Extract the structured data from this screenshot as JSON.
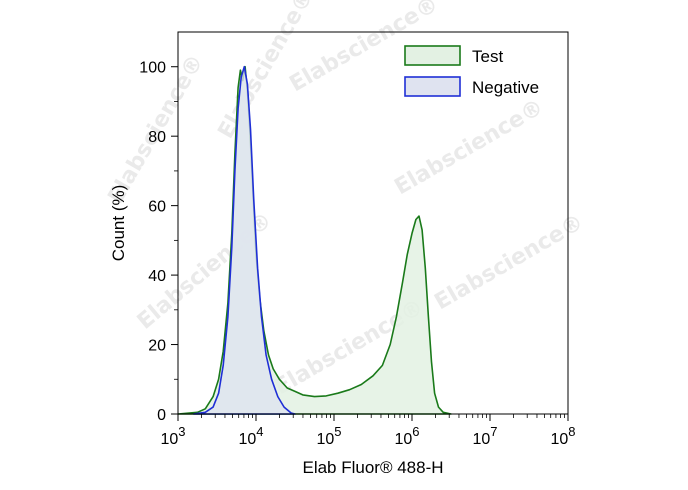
{
  "chart_data": {
    "type": "area",
    "title": "",
    "xlabel": "Elab Fluor® 488-H",
    "ylabel": "Count  (%)",
    "xscale": "log10",
    "xlim_log10": [
      3,
      8
    ],
    "ylim": [
      0,
      110
    ],
    "grid": false,
    "legend_position": "top-right",
    "x_ticks": [
      {
        "base": "10",
        "exp": "3",
        "log10": 3
      },
      {
        "base": "10",
        "exp": "4",
        "log10": 4
      },
      {
        "base": "10",
        "exp": "5",
        "log10": 5
      },
      {
        "base": "10",
        "exp": "6",
        "log10": 6
      },
      {
        "base": "10",
        "exp": "7",
        "log10": 7
      },
      {
        "base": "10",
        "exp": "8",
        "log10": 8
      }
    ],
    "y_ticks": [
      "0",
      "20",
      "40",
      "60",
      "80",
      "100"
    ],
    "y_tick_values": [
      0,
      20,
      40,
      60,
      80,
      100
    ],
    "series": [
      {
        "name": "Test",
        "stroke": "#1a7a1a",
        "fill": "#e3f1e3",
        "points_log10x_y": [
          [
            3.0,
            0
          ],
          [
            3.25,
            0.5
          ],
          [
            3.35,
            1.5
          ],
          [
            3.45,
            5
          ],
          [
            3.52,
            10
          ],
          [
            3.58,
            18
          ],
          [
            3.64,
            32
          ],
          [
            3.69,
            52
          ],
          [
            3.73,
            75
          ],
          [
            3.77,
            94
          ],
          [
            3.8,
            99
          ],
          [
            3.83,
            96
          ],
          [
            3.86,
            100
          ],
          [
            3.89,
            93
          ],
          [
            3.92,
            82
          ],
          [
            3.96,
            64
          ],
          [
            4.0,
            46
          ],
          [
            4.05,
            33
          ],
          [
            4.1,
            24
          ],
          [
            4.16,
            17
          ],
          [
            4.22,
            13
          ],
          [
            4.3,
            10
          ],
          [
            4.4,
            7.5
          ],
          [
            4.5,
            6.5
          ],
          [
            4.6,
            5.5
          ],
          [
            4.75,
            5
          ],
          [
            4.9,
            5.2
          ],
          [
            5.05,
            6
          ],
          [
            5.2,
            7
          ],
          [
            5.35,
            8.5
          ],
          [
            5.5,
            11
          ],
          [
            5.62,
            14
          ],
          [
            5.72,
            20
          ],
          [
            5.8,
            28
          ],
          [
            5.88,
            38
          ],
          [
            5.94,
            46
          ],
          [
            6.0,
            52
          ],
          [
            6.05,
            56
          ],
          [
            6.09,
            57
          ],
          [
            6.13,
            53
          ],
          [
            6.17,
            42
          ],
          [
            6.21,
            28
          ],
          [
            6.25,
            15
          ],
          [
            6.29,
            6
          ],
          [
            6.34,
            2
          ],
          [
            6.4,
            0.5
          ],
          [
            6.5,
            0
          ]
        ]
      },
      {
        "name": "Negative",
        "stroke": "#1f2fd6",
        "fill": "#dfe3f0",
        "points_log10x_y": [
          [
            3.2,
            0
          ],
          [
            3.35,
            0.5
          ],
          [
            3.45,
            2
          ],
          [
            3.52,
            6
          ],
          [
            3.58,
            14
          ],
          [
            3.64,
            28
          ],
          [
            3.69,
            48
          ],
          [
            3.73,
            70
          ],
          [
            3.77,
            88
          ],
          [
            3.81,
            97
          ],
          [
            3.85,
            100
          ],
          [
            3.89,
            95
          ],
          [
            3.93,
            82
          ],
          [
            3.97,
            62
          ],
          [
            4.02,
            42
          ],
          [
            4.07,
            28
          ],
          [
            4.13,
            17
          ],
          [
            4.2,
            10
          ],
          [
            4.28,
            5
          ],
          [
            4.36,
            2
          ],
          [
            4.45,
            0.3
          ],
          [
            4.5,
            0
          ]
        ]
      }
    ]
  },
  "watermark": "Elabscience®"
}
